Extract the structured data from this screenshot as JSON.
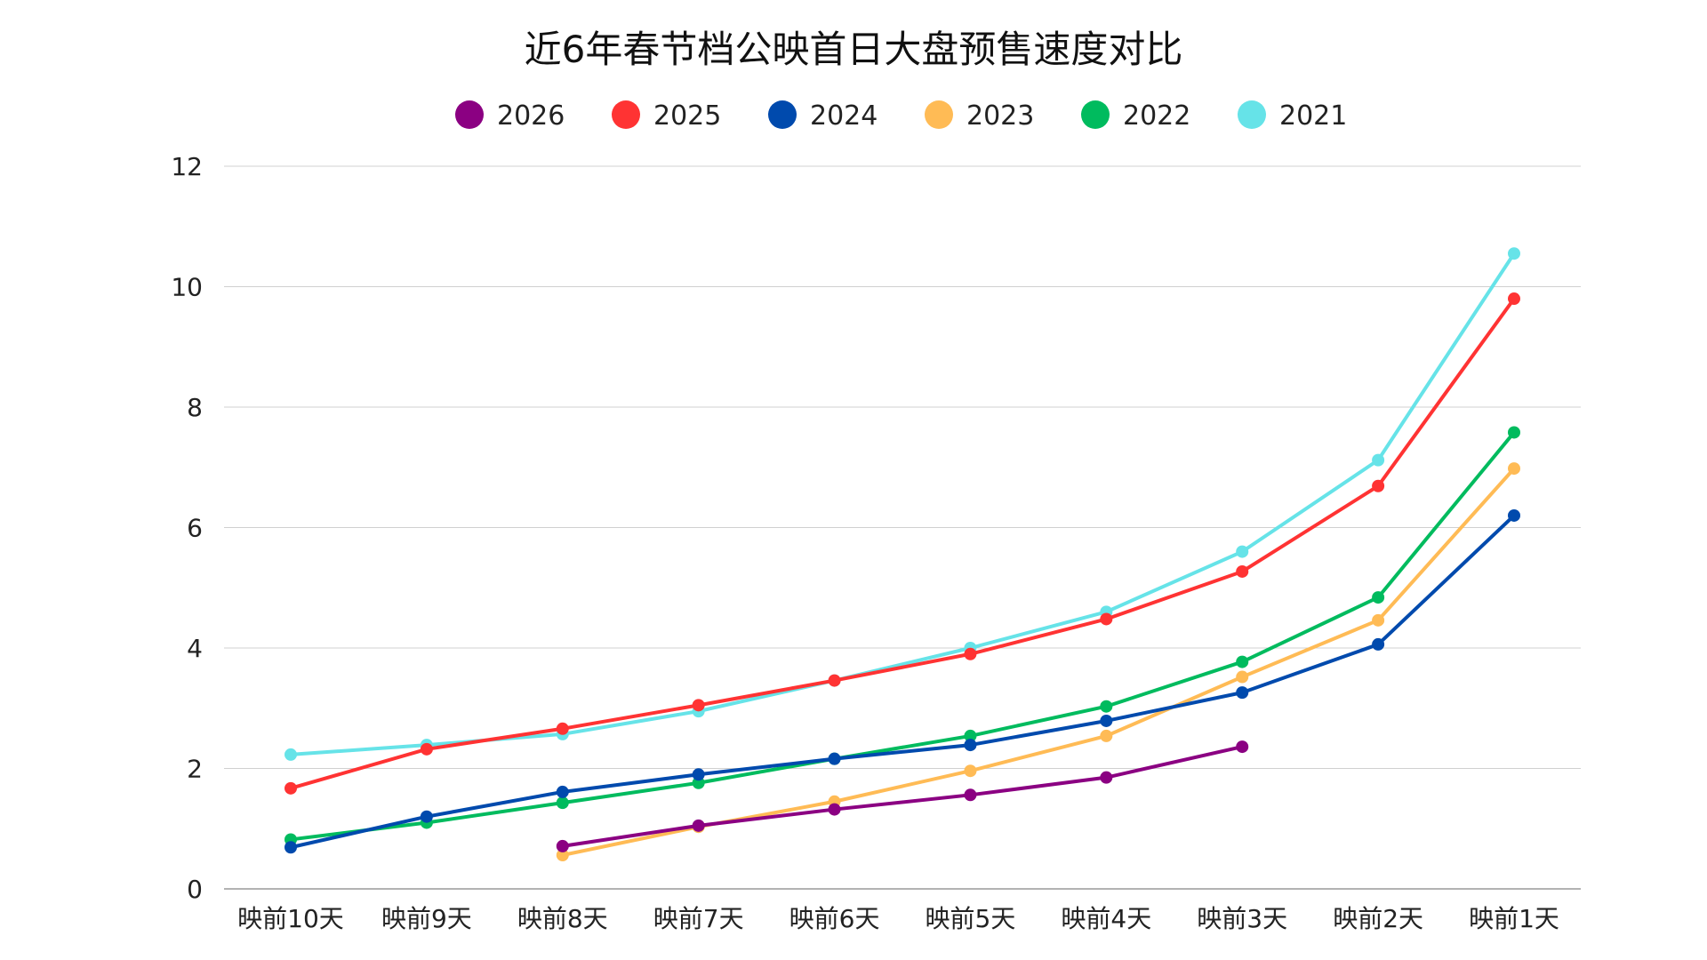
{
  "chart_data": {
    "type": "line",
    "title": "近6年春节档公映首日大盘预售速度对比",
    "categories": [
      "映前10天",
      "映前9天",
      "映前8天",
      "映前7天",
      "映前6天",
      "映前5天",
      "映前4天",
      "映前3天",
      "映前2天",
      "映前1天"
    ],
    "ylim": [
      0,
      12
    ],
    "yticks": [
      0,
      2,
      4,
      6,
      8,
      10,
      12
    ],
    "grid": true,
    "legend": "top",
    "series": [
      {
        "name": "2026",
        "color": "#8B0082",
        "values": [
          null,
          null,
          0.71,
          1.05,
          1.32,
          1.56,
          1.85,
          2.36,
          null,
          null
        ]
      },
      {
        "name": "2025",
        "color": "#FF3333",
        "values": [
          1.67,
          2.32,
          2.66,
          3.05,
          3.46,
          3.9,
          4.48,
          5.27,
          6.69,
          9.8
        ]
      },
      {
        "name": "2024",
        "color": "#004AAD",
        "values": [
          0.69,
          1.2,
          1.61,
          1.9,
          2.16,
          2.39,
          2.79,
          3.26,
          4.06,
          6.2
        ]
      },
      {
        "name": "2023",
        "color": "#FFBB55",
        "values": [
          null,
          null,
          0.56,
          1.03,
          1.45,
          1.96,
          2.54,
          3.52,
          4.46,
          6.98
        ]
      },
      {
        "name": "2022",
        "color": "#00BB5E",
        "values": [
          0.82,
          1.1,
          1.43,
          1.76,
          2.16,
          2.54,
          3.03,
          3.77,
          4.84,
          7.58
        ]
      },
      {
        "name": "2021",
        "color": "#66E3E8",
        "values": [
          2.23,
          2.39,
          2.57,
          2.95,
          3.46,
          4.0,
          4.6,
          5.6,
          7.12,
          10.55
        ]
      }
    ]
  }
}
